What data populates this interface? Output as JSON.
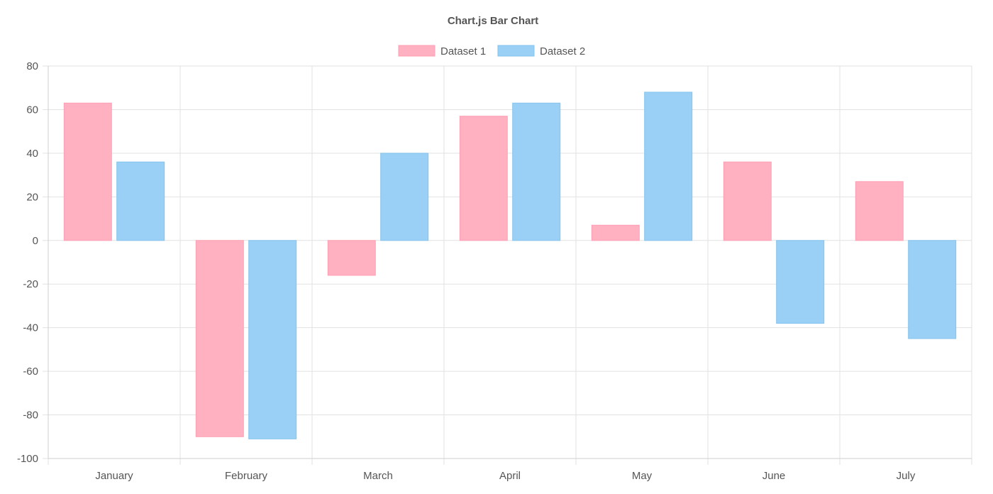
{
  "chart_data": {
    "type": "bar",
    "title": "Chart.js Bar Chart",
    "legend_position": "top",
    "grid": true,
    "categories": [
      "January",
      "February",
      "March",
      "April",
      "May",
      "June",
      "July"
    ],
    "series": [
      {
        "name": "Dataset 1",
        "values": [
          63,
          -90,
          -16,
          57,
          7,
          36,
          27
        ],
        "fill": "#ffb1c1",
        "stroke": "#ff9fb4"
      },
      {
        "name": "Dataset 2",
        "values": [
          36,
          -91,
          40,
          63,
          68,
          -38,
          -45
        ],
        "fill": "#9ad0f5",
        "stroke": "#84c3ef"
      }
    ],
    "ylim": [
      -100,
      80
    ],
    "yticks": [
      "80",
      "60",
      "40",
      "20",
      "0",
      "-20",
      "-40",
      "-60",
      "-80",
      "-100"
    ]
  }
}
